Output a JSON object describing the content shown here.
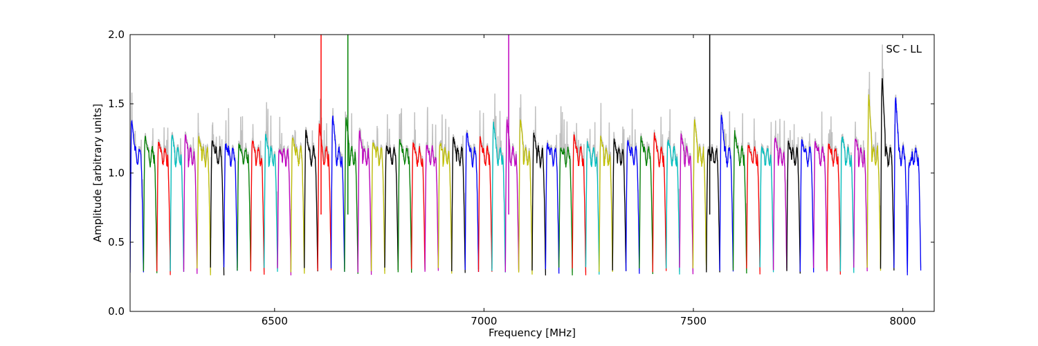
{
  "chart_data": {
    "type": "line",
    "title": "",
    "annotation": "SC - LL",
    "xlabel": "Frequency [MHz]",
    "ylabel": "Amplitude [arbitrary units]",
    "xlim": [
      6155,
      8075
    ],
    "ylim": [
      0.0,
      2.0
    ],
    "x_ticks": [
      6500,
      7000,
      7500,
      8000
    ],
    "x_tick_labels": [
      "6500",
      "7000",
      "7500",
      "8000"
    ],
    "y_ticks": [
      0.0,
      0.5,
      1.0,
      1.5,
      2.0
    ],
    "y_tick_labels": [
      "0.0",
      "0.5",
      "1.0",
      "1.5",
      "2.0"
    ],
    "grid": false,
    "background_color": "#c0c0c0",
    "color_cycle": [
      "#0000ff",
      "#008000",
      "#ff0000",
      "#00bfbf",
      "#bf00bf",
      "#bfbf00",
      "#000000"
    ],
    "channel_width_mhz": 32,
    "channels": [
      {
        "start": 6155,
        "color": "#0000ff",
        "peak": 1.38
      },
      {
        "start": 6187,
        "color": "#008000",
        "peak": 1.26
      },
      {
        "start": 6219,
        "color": "#ff0000",
        "peak": 1.22
      },
      {
        "start": 6251,
        "color": "#00bfbf",
        "peak": 1.28
      },
      {
        "start": 6283,
        "color": "#bf00bf",
        "peak": 1.28
      },
      {
        "start": 6315,
        "color": "#bfbf00",
        "peak": 1.26
      },
      {
        "start": 6347,
        "color": "#000000",
        "peak": 1.24
      },
      {
        "start": 6379,
        "color": "#0000ff",
        "peak": 1.21
      },
      {
        "start": 6411,
        "color": "#008000",
        "peak": 1.21
      },
      {
        "start": 6443,
        "color": "#ff0000",
        "peak": 1.24
      },
      {
        "start": 6475,
        "color": "#00bfbf",
        "peak": 1.27
      },
      {
        "start": 6507,
        "color": "#bf00bf",
        "peak": 1.17
      },
      {
        "start": 6539,
        "color": "#bfbf00",
        "peak": 1.25
      },
      {
        "start": 6571,
        "color": "#000000",
        "peak": 1.3
      },
      {
        "start": 6603,
        "color": "#ff0000",
        "peak": 1.35,
        "spike": 2.0
      },
      {
        "start": 6635,
        "color": "#0000ff",
        "peak": 1.42
      },
      {
        "start": 6667,
        "color": "#008000",
        "peak": 1.41,
        "spike": 2.0
      },
      {
        "start": 6699,
        "color": "#bf00bf",
        "peak": 1.3
      },
      {
        "start": 6731,
        "color": "#bfbf00",
        "peak": 1.22
      },
      {
        "start": 6763,
        "color": "#000000",
        "peak": 1.18
      },
      {
        "start": 6795,
        "color": "#008000",
        "peak": 1.25
      },
      {
        "start": 6827,
        "color": "#ff0000",
        "peak": 1.21
      },
      {
        "start": 6859,
        "color": "#bf00bf",
        "peak": 1.2
      },
      {
        "start": 6891,
        "color": "#bfbf00",
        "peak": 1.22
      },
      {
        "start": 6923,
        "color": "#000000",
        "peak": 1.26
      },
      {
        "start": 6955,
        "color": "#0000ff",
        "peak": 1.3
      },
      {
        "start": 6987,
        "color": "#ff0000",
        "peak": 1.25
      },
      {
        "start": 7019,
        "color": "#00bfbf",
        "peak": 1.36
      },
      {
        "start": 7051,
        "color": "#bf00bf",
        "peak": 1.38,
        "spike": 2.0
      },
      {
        "start": 7083,
        "color": "#bfbf00",
        "peak": 1.4
      },
      {
        "start": 7115,
        "color": "#000000",
        "peak": 1.29
      },
      {
        "start": 7147,
        "color": "#0000ff",
        "peak": 1.21
      },
      {
        "start": 7179,
        "color": "#008000",
        "peak": 1.17
      },
      {
        "start": 7211,
        "color": "#ff0000",
        "peak": 1.27
      },
      {
        "start": 7243,
        "color": "#00bfbf",
        "peak": 1.22
      },
      {
        "start": 7275,
        "color": "#bfbf00",
        "peak": 1.26
      },
      {
        "start": 7307,
        "color": "#000000",
        "peak": 1.23
      },
      {
        "start": 7339,
        "color": "#0000ff",
        "peak": 1.23
      },
      {
        "start": 7371,
        "color": "#008000",
        "peak": 1.26
      },
      {
        "start": 7403,
        "color": "#ff0000",
        "peak": 1.28
      },
      {
        "start": 7435,
        "color": "#00bfbf",
        "peak": 1.24
      },
      {
        "start": 7467,
        "color": "#bf00bf",
        "peak": 1.27
      },
      {
        "start": 7499,
        "color": "#bfbf00",
        "peak": 1.39
      },
      {
        "start": 7531,
        "color": "#000000",
        "peak": 1.16,
        "spike": 2.0
      },
      {
        "start": 7563,
        "color": "#0000ff",
        "peak": 1.44
      },
      {
        "start": 7595,
        "color": "#008000",
        "peak": 1.29
      },
      {
        "start": 7627,
        "color": "#ff0000",
        "peak": 1.2
      },
      {
        "start": 7659,
        "color": "#00bfbf",
        "peak": 1.18
      },
      {
        "start": 7691,
        "color": "#bf00bf",
        "peak": 1.26
      },
      {
        "start": 7723,
        "color": "#000000",
        "peak": 1.22
      },
      {
        "start": 7755,
        "color": "#0000ff",
        "peak": 1.24
      },
      {
        "start": 7787,
        "color": "#bf00bf",
        "peak": 1.23
      },
      {
        "start": 7819,
        "color": "#ff0000",
        "peak": 1.21
      },
      {
        "start": 7851,
        "color": "#00bfbf",
        "peak": 1.27
      },
      {
        "start": 7883,
        "color": "#bf00bf",
        "peak": 1.26
      },
      {
        "start": 7915,
        "color": "#bfbf00",
        "peak": 1.56
      },
      {
        "start": 7947,
        "color": "#000000",
        "peak": 1.7
      },
      {
        "start": 7979,
        "color": "#0000ff",
        "peak": 1.55
      },
      {
        "start": 8011,
        "color": "#0000ff",
        "peak": 1.05
      }
    ]
  }
}
